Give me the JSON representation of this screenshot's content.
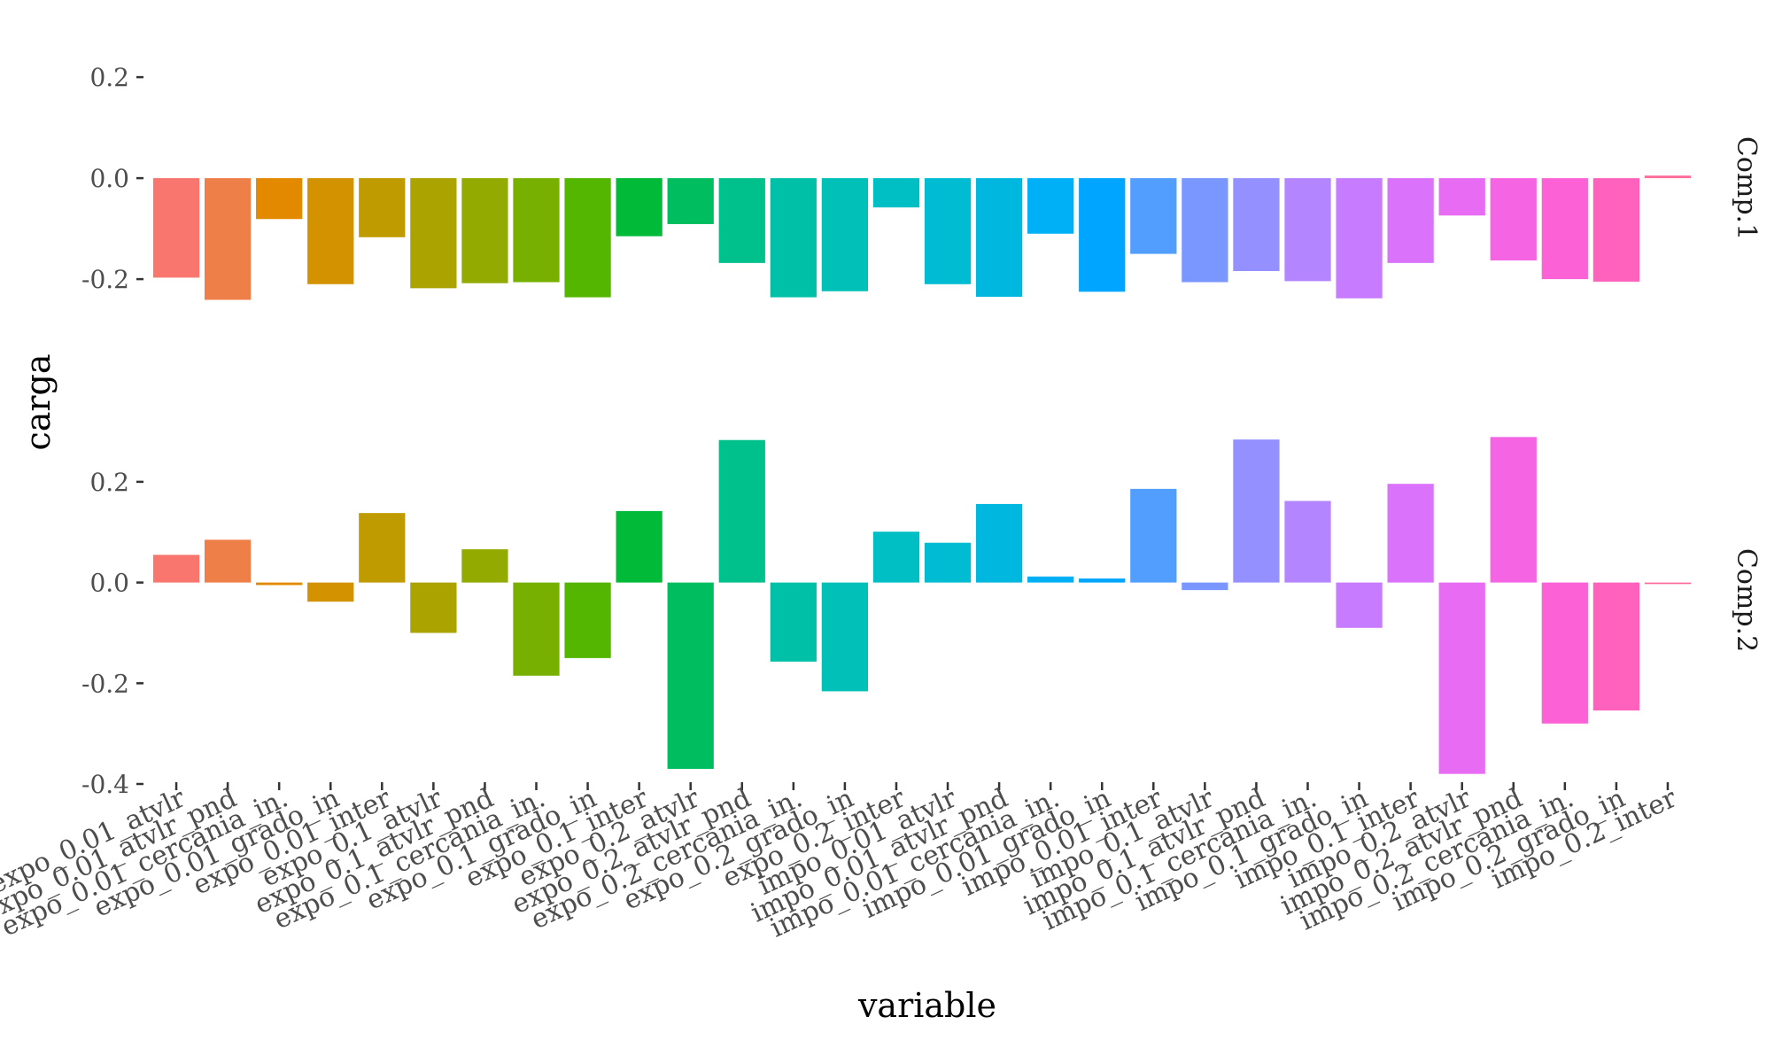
{
  "chart_data": {
    "type": "bar",
    "xlabel": "variable",
    "ylabel": "carga",
    "facet_rows": true,
    "legend": "none",
    "grid": false,
    "categories": [
      "expo_0.01_atvlr",
      "expo_0.01_atvlr_pnd",
      "expo_0.01_cercania_in.",
      "expo_0.01_grado_in",
      "expo_0.01_inter",
      "expo_0.1_atvlr",
      "expo_0.1_atvlr_pnd",
      "expo_0.1_cercania_in.",
      "expo_0.1_grado_in",
      "expo_0.1_inter",
      "expo_0.2_atvlr",
      "expo_0.2_atvlr_pnd",
      "expo_0.2_cercania_in.",
      "expo_0.2_grado_in",
      "expo_0.2_inter",
      "impo_0.01_atvlr",
      "impo_0.01_atvlr_pnd",
      "impo_0.01_cercania_in.",
      "impo_0.01_grado_in",
      "impo_0.01_inter",
      "impo_0.1_atvlr",
      "impo_0.1_atvlr_pnd",
      "impo_0.1_cercania_in.",
      "impo_0.1_grado_in",
      "impo_0.1_inter",
      "impo_0.2_atvlr",
      "impo_0.2_atvlr_pnd",
      "impo_0.2_cercania_in.",
      "impo_0.2_grado_in",
      "impo_0.2_inter"
    ],
    "colors": [
      "#F8766D",
      "#EF7F49",
      "#E38900",
      "#D39200",
      "#C09B00",
      "#AAA300",
      "#93AA00",
      "#78B000",
      "#54B600",
      "#00BA38",
      "#00BD5F",
      "#00C08B",
      "#00C1A7",
      "#00C0B8",
      "#00BFC4",
      "#00BCD3",
      "#00B7E0",
      "#00B0F6",
      "#00A5FF",
      "#529EFF",
      "#7997FF",
      "#9590FF",
      "#B385FF",
      "#C77CFF",
      "#DB72FB",
      "#E76BF3",
      "#F564E3",
      "#FC61D5",
      "#FF62BC",
      "#FF6A98"
    ],
    "panels": [
      {
        "label": "Comp.1",
        "ylim": [
          -0.27,
          0.23
        ],
        "yticks": [
          0.2,
          0.0,
          -0.2
        ],
        "ytick_labels": [
          "0.2",
          "0.0",
          "-0.2"
        ],
        "values": [
          -0.197,
          -0.241,
          -0.081,
          -0.21,
          -0.117,
          -0.218,
          -0.208,
          -0.206,
          -0.236,
          -0.115,
          -0.091,
          -0.168,
          -0.236,
          -0.224,
          -0.058,
          -0.21,
          -0.235,
          -0.11,
          -0.225,
          -0.15,
          -0.206,
          -0.184,
          -0.204,
          -0.238,
          -0.168,
          -0.074,
          -0.163,
          -0.2,
          -0.205,
          0.005
        ]
      },
      {
        "label": "Comp.2",
        "ylim": [
          -0.4,
          0.33
        ],
        "yticks": [
          0.2,
          0.0,
          -0.2,
          -0.4
        ],
        "ytick_labels": [
          "0.2",
          "0.0",
          "-0.2",
          "-0.4"
        ],
        "values": [
          0.055,
          0.085,
          -0.005,
          -0.038,
          0.138,
          -0.1,
          0.066,
          -0.185,
          -0.15,
          0.142,
          -0.37,
          0.283,
          -0.157,
          -0.216,
          0.101,
          0.079,
          0.156,
          0.012,
          0.008,
          0.186,
          -0.015,
          0.284,
          0.162,
          -0.09,
          0.196,
          -0.38,
          0.289,
          -0.28,
          -0.254,
          -0.003
        ]
      }
    ]
  }
}
